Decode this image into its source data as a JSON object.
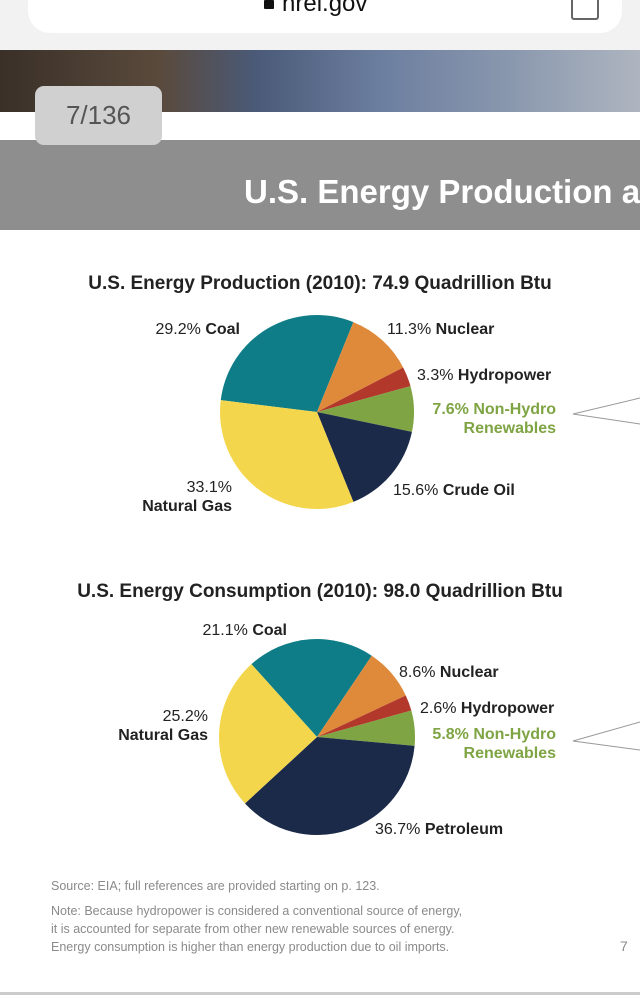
{
  "browser": {
    "url": "nrel.gov"
  },
  "page_counter": "7/136",
  "banner_title": "U.S. Energy Production a",
  "chart_data": [
    {
      "type": "pie",
      "title": "U.S. Energy Production (2010): 74.9 Quadrillion Btu",
      "categories": [
        "Coal",
        "Nuclear",
        "Hydropower",
        "Non-Hydro Renewables",
        "Crude Oil",
        "Natural Gas"
      ],
      "values": [
        29.2,
        11.3,
        3.3,
        7.6,
        15.6,
        33.1
      ],
      "value_labels": [
        "29.2%",
        "11.3%",
        "3.3%",
        "7.6%",
        "15.6%",
        "33.1%"
      ],
      "colors": [
        "#0f7d87",
        "#df8a3b",
        "#b2382b",
        "#7ea443",
        "#1c2a4a",
        "#f3d64c"
      ]
    },
    {
      "type": "pie",
      "title": "U.S. Energy Consumption (2010): 98.0 Quadrillion Btu",
      "categories": [
        "Coal",
        "Nuclear",
        "Hydropower",
        "Non-Hydro Renewables",
        "Petroleum",
        "Natural Gas"
      ],
      "values": [
        21.1,
        8.6,
        2.6,
        5.8,
        36.7,
        25.2
      ],
      "value_labels": [
        "21.1%",
        "8.6%",
        "2.6%",
        "5.8%",
        "36.7%",
        "25.2%"
      ],
      "colors": [
        "#0f7d87",
        "#df8a3b",
        "#b2382b",
        "#7ea443",
        "#1c2a4a",
        "#f3d64c"
      ]
    }
  ],
  "source": "Source: EIA; full references are provided starting on p. 123.",
  "note": [
    "Note: Because hydropower is considered a conventional source of energy,",
    "it is accounted for separate from other new renewable sources of energy.",
    "Energy consumption is higher than energy production due to oil imports."
  ],
  "page_number": "7"
}
